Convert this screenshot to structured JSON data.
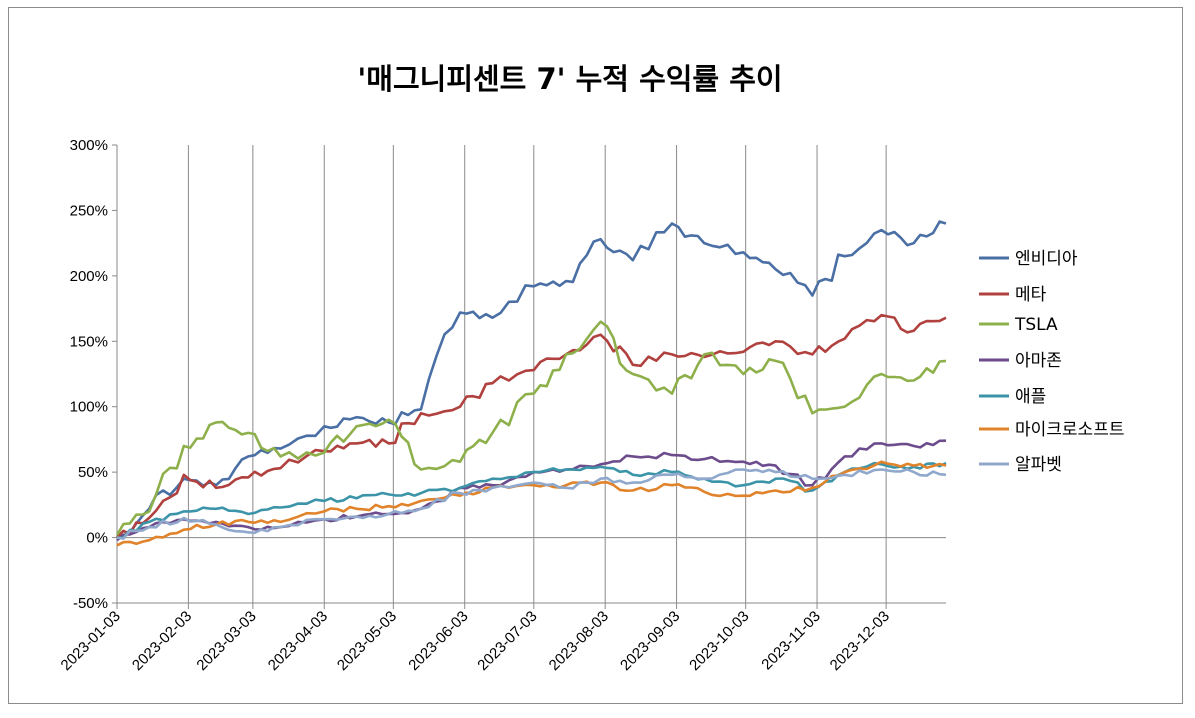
{
  "chart_data": {
    "type": "line",
    "title": "'매그니피센트 7' 누적 수익률 추이",
    "xlabel": "",
    "ylabel": "",
    "ylim": [
      -50,
      300
    ],
    "y_ticks": [
      "300%",
      "250%",
      "200%",
      "150%",
      "100%",
      "50%",
      "0%",
      "-50%"
    ],
    "x_ticks": [
      "2023-01-03",
      "2023-02-03",
      "2023-03-03",
      "2023-04-03",
      "2023-05-03",
      "2023-06-03",
      "2023-07-03",
      "2023-08-03",
      "2023-09-03",
      "2023-10-03",
      "2023-11-03",
      "2023-12-03"
    ],
    "grid": "vertical",
    "legend": "right",
    "x": [
      "2023-01-03",
      "2023-01-17",
      "2023-02-01",
      "2023-02-15",
      "2023-03-01",
      "2023-03-15",
      "2023-04-03",
      "2023-04-17",
      "2023-05-01",
      "2023-05-15",
      "2023-06-01",
      "2023-06-15",
      "2023-07-03",
      "2023-07-17",
      "2023-08-01",
      "2023-08-15",
      "2023-09-01",
      "2023-09-15",
      "2023-10-02",
      "2023-10-16",
      "2023-11-01",
      "2023-11-15",
      "2023-12-01",
      "2023-12-15",
      "2023-12-29"
    ],
    "series": [
      {
        "name": "엔비디아",
        "color": "#4a6fa5",
        "values": [
          0,
          22,
          45,
          40,
          62,
          68,
          85,
          92,
          88,
          98,
          172,
          168,
          192,
          196,
          228,
          212,
          240,
          225,
          218,
          205,
          185,
          215,
          235,
          225,
          240
        ]
      },
      {
        "name": "메타",
        "color": "#b0413e",
        "values": [
          0,
          15,
          48,
          38,
          46,
          53,
          66,
          72,
          72,
          95,
          100,
          118,
          128,
          140,
          155,
          132,
          140,
          138,
          142,
          150,
          140,
          152,
          170,
          158,
          168
        ]
      },
      {
        "name": "TSLA",
        "color": "#8db04b",
        "values": [
          2,
          20,
          70,
          88,
          80,
          62,
          65,
          85,
          90,
          52,
          58,
          80,
          110,
          140,
          165,
          125,
          110,
          140,
          125,
          135,
          95,
          100,
          125,
          120,
          135
        ]
      },
      {
        "name": "아마존",
        "color": "#6c4c8c",
        "values": [
          -2,
          8,
          14,
          12,
          8,
          8,
          14,
          16,
          18,
          22,
          38,
          40,
          50,
          52,
          56,
          62,
          63,
          60,
          58,
          55,
          40,
          62,
          72,
          70,
          74
        ]
      },
      {
        "name": "애플",
        "color": "#3c94a8",
        "values": [
          0,
          12,
          20,
          22,
          18,
          23,
          28,
          30,
          33,
          34,
          38,
          45,
          50,
          52,
          54,
          48,
          50,
          45,
          40,
          45,
          36,
          50,
          56,
          54,
          57
        ]
      },
      {
        "name": "마이크로소프트",
        "color": "#e0832a",
        "values": [
          -6,
          -2,
          6,
          10,
          12,
          12,
          20,
          22,
          24,
          28,
          32,
          38,
          40,
          40,
          42,
          36,
          40,
          35,
          32,
          36,
          38,
          50,
          58,
          55,
          55
        ]
      },
      {
        "name": "알파벳",
        "color": "#8fa8cc",
        "values": [
          0,
          8,
          15,
          10,
          4,
          8,
          14,
          16,
          18,
          22,
          34,
          38,
          42,
          38,
          45,
          42,
          48,
          45,
          52,
          50,
          45,
          48,
          52,
          50,
          48
        ]
      }
    ]
  }
}
